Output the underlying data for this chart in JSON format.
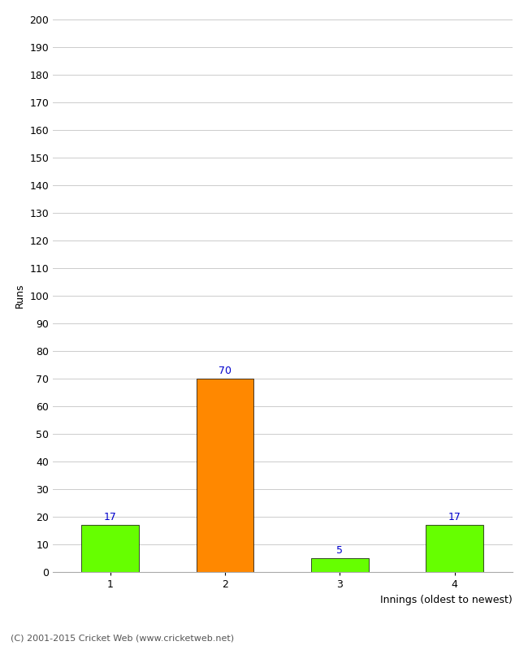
{
  "categories": [
    1,
    2,
    3,
    4
  ],
  "values": [
    17,
    70,
    5,
    17
  ],
  "bar_colors": [
    "#66ff00",
    "#ff8800",
    "#66ff00",
    "#66ff00"
  ],
  "xlabel": "Innings (oldest to newest)",
  "ylabel": "Runs",
  "ylim": [
    0,
    200
  ],
  "yticks": [
    0,
    10,
    20,
    30,
    40,
    50,
    60,
    70,
    80,
    90,
    100,
    110,
    120,
    130,
    140,
    150,
    160,
    170,
    180,
    190,
    200
  ],
  "label_color": "#0000cc",
  "background_color": "#ffffff",
  "footer": "(C) 2001-2015 Cricket Web (www.cricketweb.net)",
  "bar_width": 0.5,
  "xlim": [
    0.5,
    4.5
  ]
}
